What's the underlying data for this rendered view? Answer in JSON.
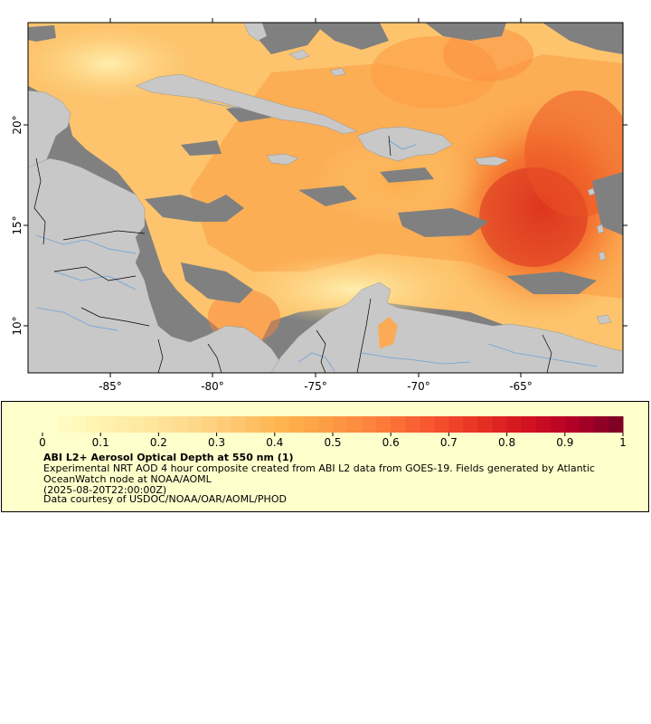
{
  "map": {
    "lon_ticks": [
      "-85°",
      "-80°",
      "-75°",
      "-70°",
      "-65°"
    ],
    "lat_ticks": [
      "20°",
      "15°",
      "10°"
    ],
    "colors": {
      "land": "#c8c8c8",
      "no_data": "#808080",
      "rivers": "#6fa0d8",
      "borders": "#000000"
    }
  },
  "colorbar": {
    "min": 0,
    "max": 1,
    "tick_labels": [
      "0",
      "0.1",
      "0.2",
      "0.3",
      "0.4",
      "0.5",
      "0.6",
      "0.7",
      "0.8",
      "0.9",
      "1"
    ],
    "palette": [
      "#ffffcc",
      "#fff3b0",
      "#fee8a0",
      "#fed98b",
      "#fec66f",
      "#feb24c",
      "#fd9a44",
      "#fd7d3c",
      "#f75830",
      "#ea3524",
      "#d41520",
      "#b70026",
      "#800026"
    ]
  },
  "legend": {
    "title": "ABI L2+ Aerosol Optical Depth at 550 nm (1)",
    "description": "Experimental NRT AOD 4 hour composite created from ABI L2 data from GOES-19. Fields generated by Atlantic OceanWatch node at NOAA/AOML",
    "date": "(2025-08-20T22:00:00Z)",
    "credit": "Data courtesy of USDOC/NOAA/OAR/AOML/PHOD"
  }
}
